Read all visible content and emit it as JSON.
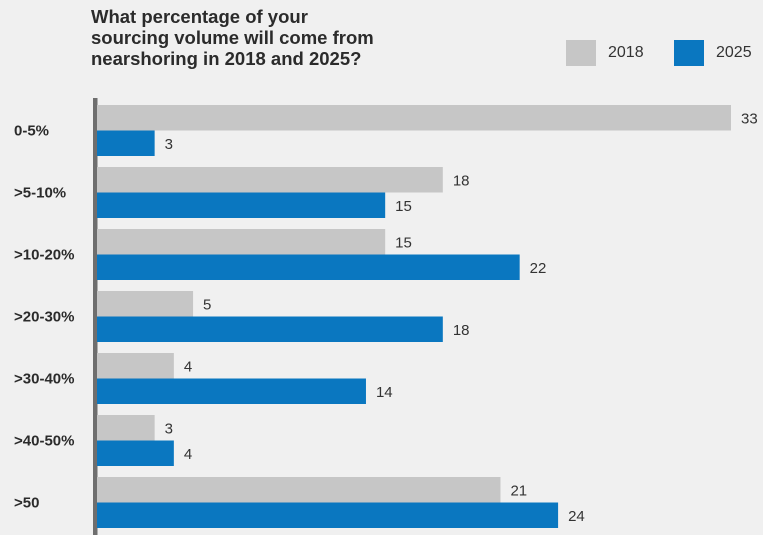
{
  "chart_data": {
    "type": "bar",
    "orientation": "horizontal",
    "title_lines": [
      "What percentage of your",
      "sourcing volume will come from",
      "nearshoring in 2018 and 2025?"
    ],
    "categories": [
      "0-5%",
      ">5-10%",
      ">10-20%",
      ">20-30%",
      ">30-40%",
      ">40-50%",
      ">50"
    ],
    "series": [
      {
        "name": "2018",
        "color": "#c6c6c6",
        "values": [
          33,
          18,
          15,
          5,
          4,
          3,
          21
        ]
      },
      {
        "name": "2025",
        "color": "#0a77c0",
        "values": [
          3,
          15,
          22,
          18,
          14,
          4,
          24
        ]
      }
    ],
    "legend_position": "top-right",
    "grid": false,
    "xlim": [
      0,
      33
    ]
  }
}
